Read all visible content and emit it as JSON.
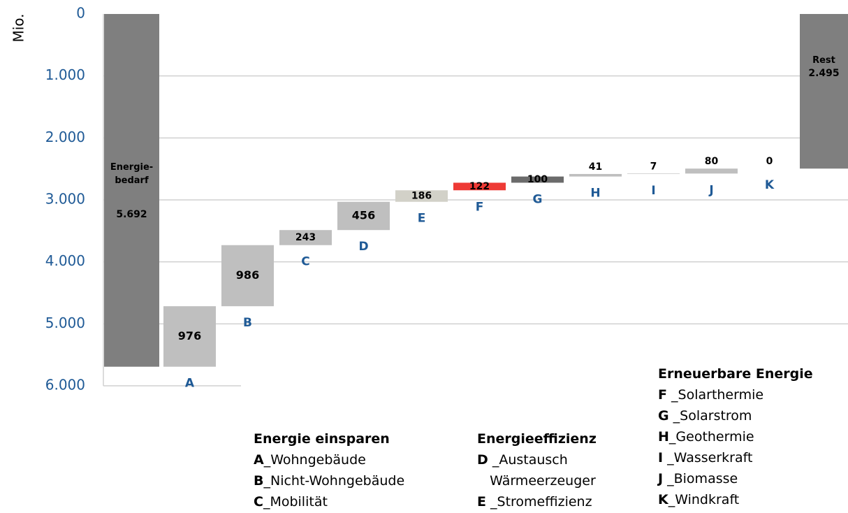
{
  "chart_data": {
    "type": "waterfall",
    "y_label": "Mio.",
    "categories": [
      "Energie-\nbedarf",
      "A",
      "B",
      "C",
      "D",
      "E",
      "F",
      "G",
      "H",
      "I",
      "J",
      "K",
      "Rest"
    ],
    "values": [
      5692,
      976,
      986,
      243,
      456,
      186,
      122,
      100,
      41,
      7,
      80,
      0,
      2495
    ],
    "value_labels": [
      "5.692",
      "976",
      "986",
      "243",
      "456",
      "186",
      "122",
      "100",
      "41",
      "7",
      "80",
      "0",
      "2.495"
    ],
    "colors": [
      "#7f7f7f",
      "#bfbfbf",
      "#bfbfbf",
      "#bfbfbf",
      "#bfbfbf",
      "#d2d1c8",
      "#ee3a35",
      "#6b6b6b",
      "#bfbfbf",
      "#bfbfbf",
      "#bfbfbf",
      "#bfbfbf",
      "#7f7f7f"
    ],
    "ylim": [
      0,
      6000
    ],
    "inverted": true,
    "yticks": [
      0,
      {
        "value": 1000,
        "label": "1.000"
      },
      {
        "value": 2000,
        "label": "2.000"
      },
      {
        "value": 3000,
        "label": "3.000"
      },
      {
        "value": 4000,
        "label": "4.000"
      },
      {
        "value": 5000,
        "label": "5.000"
      },
      {
        "value": 6000,
        "label": "6.000"
      }
    ],
    "grid": true,
    "legend": [
      {
        "title": "Energie einsparen",
        "items": [
          {
            "key": "A",
            "text": "_Wohngebäude"
          },
          {
            "key": "B",
            "text": "_Nicht-Wohngebäude"
          },
          {
            "key": "C",
            "text": "_Mobilität"
          }
        ]
      },
      {
        "title": "Energieeffizienz",
        "items": [
          {
            "key": "D",
            "text": " _Austausch\n   Wärmeerzeuger"
          },
          {
            "key": "E",
            "text": " _Stromeffizienz"
          }
        ]
      },
      {
        "title": "Erneuerbare Energie",
        "items": [
          {
            "key": "F",
            "text": " _Solarthermie"
          },
          {
            "key": "G",
            "text": " _Solarstrom"
          },
          {
            "key": "H",
            "text": "_Geothermie"
          },
          {
            "key": "I",
            "text": " _Wasserkraft"
          },
          {
            "key": "J",
            "text": " _Biomasse"
          },
          {
            "key": "K",
            "text": "_Windkraft"
          }
        ]
      }
    ]
  }
}
